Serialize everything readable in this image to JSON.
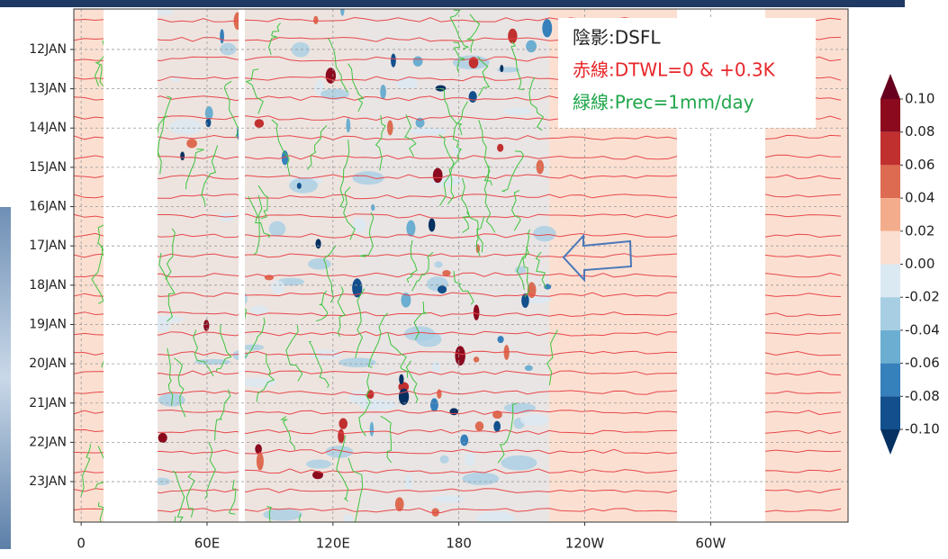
{
  "chart_data": {
    "type": "hovmoller",
    "legend_lines": [
      {
        "text": "陰影:DSFL",
        "color": "#222222"
      },
      {
        "text": "赤線:DTWL=0 & +0.3K",
        "color": "#e8262a"
      },
      {
        "text": "緑線:Prec=1mm/day",
        "color": "#1fa64a"
      }
    ],
    "xlim": [
      -3.5,
      365.5
    ],
    "xticks": [
      0,
      {
        "value": 60,
        "label": "60E"
      },
      {
        "value": 120,
        "label": "120E"
      },
      180,
      {
        "value": 240,
        "label": "120W"
      },
      {
        "value": 300,
        "label": "60W"
      }
    ],
    "ylim": [
      10.97,
      24.03
    ],
    "yticks": [
      {
        "value": 12,
        "label": "12JAN"
      },
      {
        "value": 13,
        "label": "13JAN"
      },
      {
        "value": 14,
        "label": "14JAN"
      },
      {
        "value": 15,
        "label": "15JAN"
      },
      {
        "value": 16,
        "label": "16JAN"
      },
      {
        "value": 17,
        "label": "17JAN"
      },
      {
        "value": 18,
        "label": "18JAN"
      },
      {
        "value": 19,
        "label": "19JAN"
      },
      {
        "value": 20,
        "label": "20JAN"
      },
      {
        "value": 21,
        "label": "21JAN"
      },
      {
        "value": 22,
        "label": "22JAN"
      },
      {
        "value": 23,
        "label": "23JAN"
      }
    ],
    "grid": true,
    "colorbar": {
      "ticks": [
        {
          "value": 0.1,
          "label": "0.10"
        },
        {
          "value": 0.08,
          "label": "0.08"
        },
        {
          "value": 0.06,
          "label": "0.06"
        },
        {
          "value": 0.04,
          "label": "0.04"
        },
        {
          "value": 0.02,
          "label": "0.02"
        },
        {
          "value": 0,
          "label": "0.00"
        },
        {
          "value": -0.02,
          "label": "-0.02"
        },
        {
          "value": -0.04,
          "label": "-0.04"
        },
        {
          "value": -0.06,
          "label": "-0.06"
        },
        {
          "value": -0.08,
          "label": "-0.08"
        },
        {
          "value": -0.1,
          "label": "-0.10"
        }
      ],
      "colors": [
        "#67001f",
        "#8b0a1e",
        "#c0302f",
        "#dd6b51",
        "#f4ad8c",
        "#fbe0d2",
        "#dbe9f2",
        "#a8cee3",
        "#6baed1",
        "#3680bb",
        "#124f8c",
        "#053061"
      ]
    }
  }
}
